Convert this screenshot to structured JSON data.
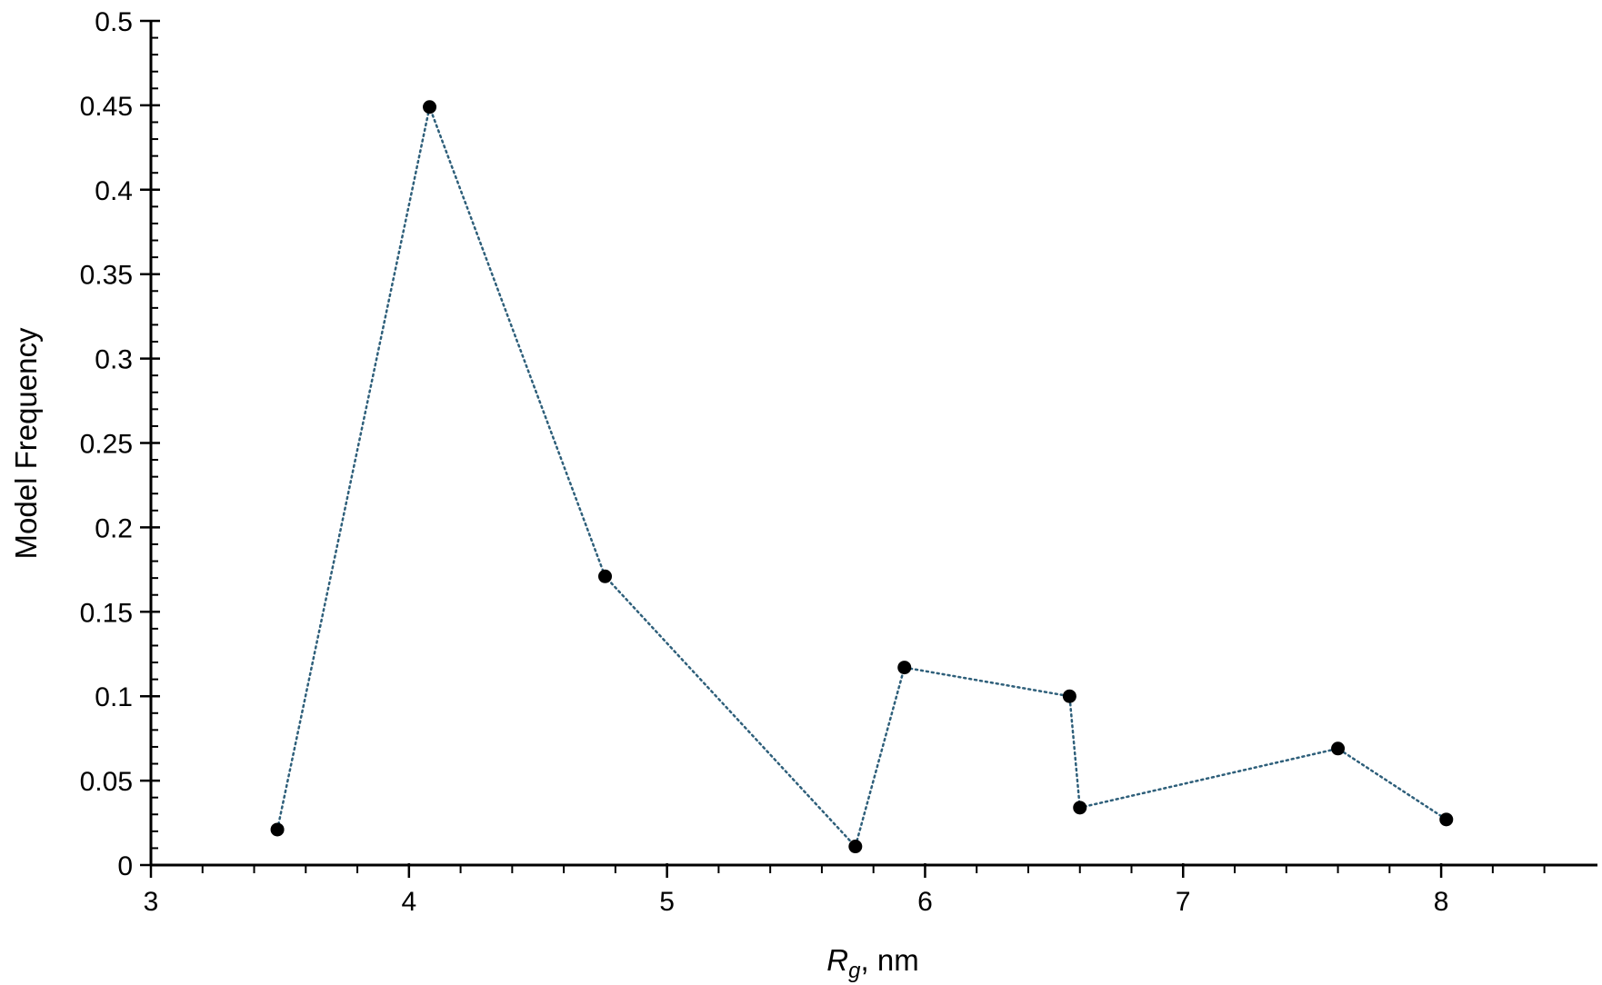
{
  "chart_data": {
    "type": "line",
    "title": "",
    "xlabel": {
      "symbol": "R",
      "subscript": "g",
      "suffix": ", nm"
    },
    "ylabel": "Model Frequency",
    "xlim": [
      3,
      8.5
    ],
    "ylim": [
      0,
      0.5
    ],
    "x_ticks": [
      "3",
      "4",
      "5",
      "6",
      "7",
      "8"
    ],
    "y_ticks": [
      "0",
      "0.05",
      "0.1",
      "0.15",
      "0.2",
      "0.25",
      "0.3",
      "0.35",
      "0.4",
      "0.45",
      "0.5"
    ],
    "grid": false,
    "legend": "none",
    "line_style": "dotted",
    "line_color": "#2e5f7a",
    "marker_color": "#000000",
    "series": [
      {
        "x": [
          3.49,
          4.08,
          4.76,
          5.73,
          5.92,
          6.56,
          6.6,
          7.6,
          8.02
        ],
        "y": [
          0.021,
          0.449,
          0.171,
          0.011,
          0.117,
          0.1,
          0.034,
          0.069,
          0.027
        ]
      }
    ]
  }
}
